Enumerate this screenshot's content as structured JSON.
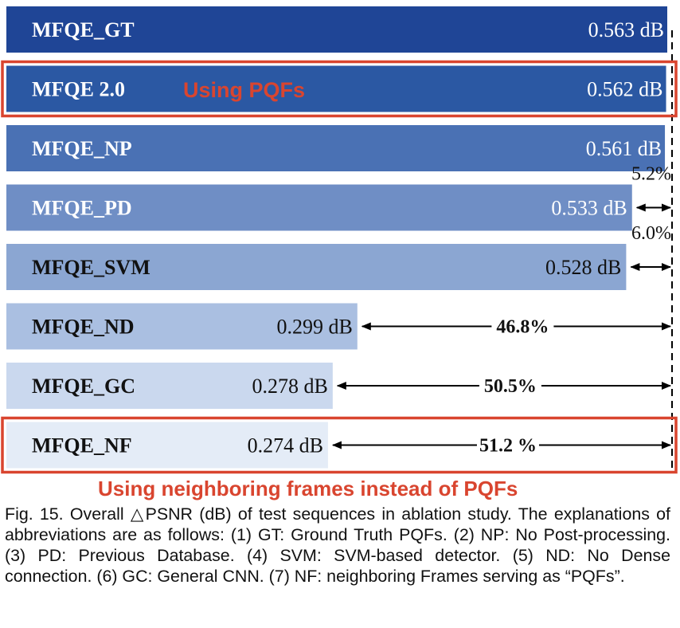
{
  "chart_data": {
    "type": "bar",
    "orientation": "horizontal",
    "categories": [
      "MFQE_GT",
      "MFQE 2.0",
      "MFQE_NP",
      "MFQE_PD",
      "MFQE_SVM",
      "MFQE_ND",
      "MFQE_GC",
      "MFQE_NF"
    ],
    "values": [
      0.563,
      0.562,
      0.561,
      0.533,
      0.528,
      0.299,
      0.278,
      0.274
    ],
    "value_labels": [
      "0.563 dB",
      "0.562 dB",
      "0.561 dB",
      "0.533 dB",
      "0.528 dB",
      "0.299 dB",
      "0.278 dB",
      "0.274 dB"
    ],
    "reduction_labels": [
      "",
      "",
      "",
      "5.2%",
      "6.0%",
      "46.8%",
      "50.5%",
      "51.2 %"
    ],
    "bar_colors": [
      "#1f4596",
      "#2b58a3",
      "#4a71b4",
      "#6f8ec5",
      "#8ba6d2",
      "#aabfe1",
      "#cad8ee",
      "#e4ecf7"
    ],
    "label_colors": [
      "#ffffff",
      "#ffffff",
      "#ffffff",
      "#ffffff",
      "#111111",
      "#111111",
      "#111111",
      "#111111"
    ],
    "xlim": [
      0,
      0.563
    ],
    "grid": false,
    "legend": "none",
    "highlighted_categories": [
      "MFQE 2.0",
      "MFQE_NF"
    ],
    "annotations": {
      "using_pqfs": "Using PQFs",
      "using_neighboring": "Using neighboring frames instead of PQFs"
    }
  },
  "caption": "Fig. 15. Overall △PSNR (dB) of test sequences in ablation study. The explanations of abbreviations are as follows: (1) GT: Ground Truth PQFs. (2) NP: No Post-processing. (3) PD: Previous Database. (4) SVM: SVM-based detector. (5) ND: No Dense connection. (6) GC: General CNN. (7) NF: neighboring Frames serving as “PQFs”.",
  "colors": {
    "highlight_box": "#d9452f",
    "annotation_text": "#d9452f"
  }
}
